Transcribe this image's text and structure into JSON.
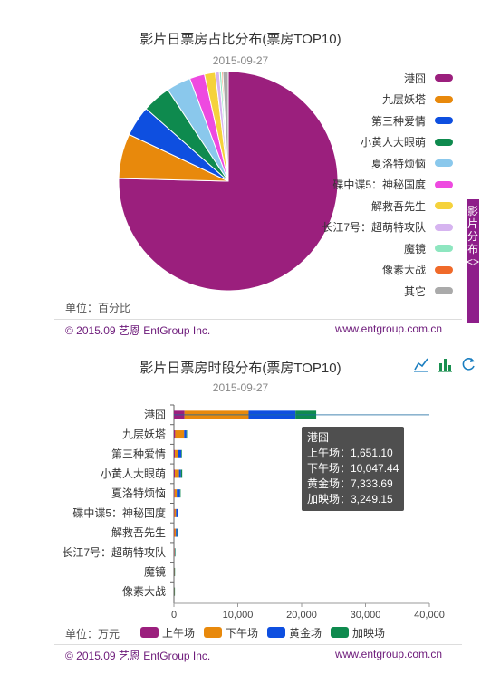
{
  "chart_data": [
    {
      "type": "pie",
      "title": "影片日票房占比分布(票房TOP10)",
      "subtitle": "2015-09-27",
      "unit": "单位：百分比",
      "slices": [
        {
          "name": "港囧",
          "value": 75.4,
          "color": "#9b1f7d"
        },
        {
          "name": "九层妖塔",
          "value": 6.6,
          "color": "#e8890c"
        },
        {
          "name": "第三种爱情",
          "value": 4.5,
          "color": "#0e4fe0"
        },
        {
          "name": "小黄人大眼萌",
          "value": 4.2,
          "color": "#0e8a4e"
        },
        {
          "name": "夏洛特烦恼",
          "value": 3.6,
          "color": "#8ac8ec"
        },
        {
          "name": "碟中谍5：神秘国度",
          "value": 2.2,
          "color": "#ee4ae0"
        },
        {
          "name": "解救吾先生",
          "value": 1.6,
          "color": "#f5d23c"
        },
        {
          "name": "长江7号：超萌特攻队",
          "value": 0.6,
          "color": "#d6b4f0"
        },
        {
          "name": "魔镜",
          "value": 0.3,
          "color": "#8ee6c0"
        },
        {
          "name": "像素大战",
          "value": 0.2,
          "color": "#f06a2a"
        },
        {
          "name": "其它",
          "value": 0.8,
          "color": "#aaaaaa"
        }
      ]
    },
    {
      "type": "bar",
      "orientation": "horizontal",
      "stacked": true,
      "title": "影片日票房时段分布(票房TOP10)",
      "subtitle": "2015-09-27",
      "unit": "单位：万元",
      "categories": [
        "港囧",
        "九层妖塔",
        "第三种爱情",
        "小黄人大眼萌",
        "夏洛特烦恼",
        "碟中谍5：神秘国度",
        "解救吾先生",
        "长江7号：超萌特攻队",
        "魔镜",
        "像素大战"
      ],
      "series": [
        {
          "name": "上午场",
          "color": "#9b1f7d",
          "values": [
            1651.1,
            200,
            150,
            150,
            100,
            80,
            60,
            30,
            20,
            15
          ]
        },
        {
          "name": "下午场",
          "color": "#e8890c",
          "values": [
            10047.44,
            1400,
            500,
            650,
            350,
            250,
            250,
            80,
            50,
            40
          ]
        },
        {
          "name": "黄金场",
          "color": "#0e4fe0",
          "values": [
            7333.69,
            350,
            500,
            300,
            500,
            300,
            200,
            60,
            30,
            30
          ]
        },
        {
          "name": "加映场",
          "color": "#0e8a4e",
          "values": [
            3249.15,
            100,
            100,
            200,
            100,
            50,
            60,
            20,
            10,
            10
          ]
        }
      ],
      "xlim": [
        0,
        40000
      ],
      "xticks": [
        "0",
        "10,000",
        "20,000",
        "30,000",
        "40,000"
      ],
      "tooltip": {
        "title": "港囧",
        "lines": [
          "上午场：1,651.10",
          "下午场：10,047.44",
          "黄金场：7,333.69",
          "加映场：3,249.15"
        ]
      }
    }
  ],
  "side_tab": "影片分布<>",
  "footer_left": "© 2015.09 艺恩 EntGroup Inc.",
  "footer_right": "www.entgroup.com.cn",
  "toolbar": {
    "line_icon": "line-chart-icon",
    "bar_icon": "bar-chart-icon",
    "refresh_icon": "refresh-icon"
  }
}
